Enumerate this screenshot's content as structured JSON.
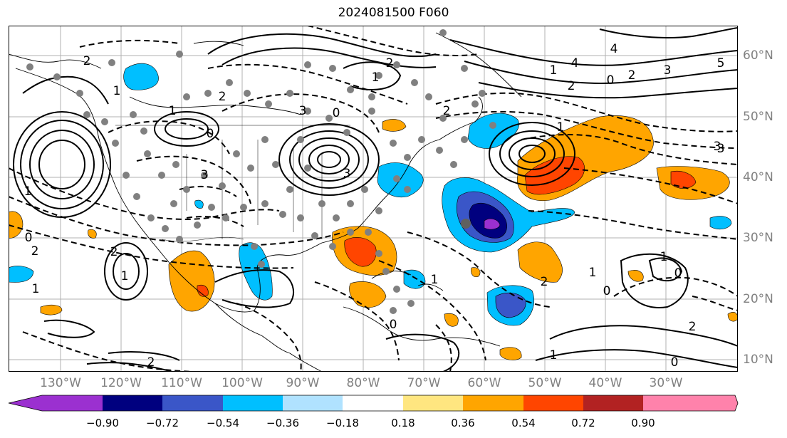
{
  "title": "2024081500 F060",
  "lon_labels": [
    "130°W",
    "120°W",
    "110°W",
    "100°W",
    "90°W",
    "80°W",
    "70°W",
    "60°W",
    "50°W",
    "40°W",
    "30°W"
  ],
  "lat_labels": [
    "60°N",
    "50°N",
    "40°N",
    "30°N",
    "20°N",
    "10°N"
  ],
  "colorbar": {
    "ticks": [
      "−0.90",
      "−0.72",
      "−0.54",
      "−0.36",
      "−0.18",
      "0.18",
      "0.36",
      "0.54",
      "0.72",
      "0.90"
    ],
    "colors": [
      "#9b30d0",
      "#00007f",
      "#3a56c8",
      "#00bfff",
      "#b0e2ff",
      "#ffffff",
      "#ffe680",
      "#ffa500",
      "#ff4500",
      "#b22222",
      "#ff82ab"
    ]
  },
  "contour_labels": [
    "2",
    "1",
    "0",
    "1",
    "2",
    "3",
    "3",
    "2",
    "1",
    "0",
    "4",
    "5",
    "3",
    "2",
    "1",
    "0",
    "1",
    "2",
    "3",
    "4",
    "1",
    "0",
    "1",
    "2",
    "2",
    "3",
    "2",
    "1",
    "0",
    "1",
    "2",
    "0",
    "1",
    "0",
    "1",
    "2",
    "3",
    "0",
    "1",
    "2"
  ]
}
